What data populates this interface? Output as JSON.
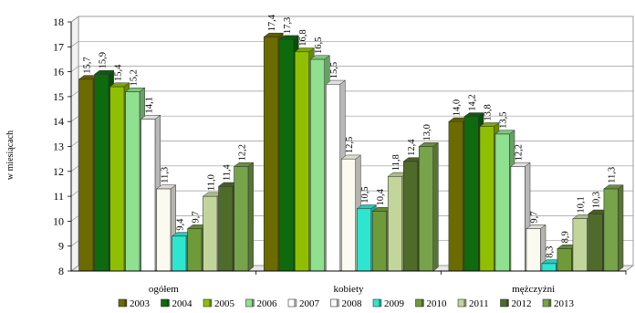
{
  "chart_data": {
    "type": "bar",
    "title": "",
    "xlabel": "",
    "ylabel": "w miesiącach",
    "ylim": [
      8,
      18
    ],
    "yticks": [
      8,
      9,
      10,
      11,
      12,
      13,
      14,
      15,
      16,
      17,
      18
    ],
    "grid": true,
    "legend": "bottom",
    "categories": [
      "ogółem",
      "kobiety",
      "mężczyźni"
    ],
    "series": [
      {
        "name": "2003",
        "color": "#6b6b00",
        "values": [
          15.7,
          17.4,
          14.0
        ],
        "labels": [
          "15,7",
          "17,4",
          "14,0"
        ]
      },
      {
        "name": "2004",
        "color": "#0d6b0d",
        "values": [
          15.9,
          17.3,
          14.2
        ],
        "labels": [
          "15,9",
          "17,3",
          "14,2"
        ]
      },
      {
        "name": "2005",
        "color": "#8fbf00",
        "values": [
          15.4,
          16.8,
          13.8
        ],
        "labels": [
          "15,4",
          "16,8",
          "13,8"
        ]
      },
      {
        "name": "2006",
        "color": "#8fe08f",
        "values": [
          15.2,
          16.5,
          13.5
        ],
        "labels": [
          "15,2",
          "16,5",
          "13,5"
        ]
      },
      {
        "name": "2007",
        "color": "#ffffff",
        "values": [
          14.1,
          15.5,
          12.2
        ],
        "labels": [
          "14,1",
          "15,5",
          "12,2"
        ]
      },
      {
        "name": "2008",
        "color": "#fafaf0",
        "values": [
          11.3,
          12.5,
          9.7
        ],
        "labels": [
          "11,3",
          "12,5",
          "9,7"
        ]
      },
      {
        "name": "2009",
        "color": "#2ee6d0",
        "values": [
          9.4,
          10.5,
          8.3
        ],
        "labels": [
          "9,4",
          "10,5",
          "8,3"
        ]
      },
      {
        "name": "2010",
        "color": "#6f9a3a",
        "values": [
          9.7,
          10.4,
          8.9
        ],
        "labels": [
          "9,7",
          "10,4",
          "8,9"
        ]
      },
      {
        "name": "2011",
        "color": "#c2d69b",
        "values": [
          11.0,
          11.8,
          10.1
        ],
        "labels": [
          "11,0",
          "11,8",
          "10,1"
        ]
      },
      {
        "name": "2012",
        "color": "#4f6b2a",
        "values": [
          11.4,
          12.4,
          10.3
        ],
        "labels": [
          "11,4",
          "12,4",
          "10,3"
        ]
      },
      {
        "name": "2013",
        "color": "#77a34a",
        "values": [
          12.2,
          13.0,
          11.3
        ],
        "labels": [
          "12,2",
          "13,0",
          "11,3"
        ]
      }
    ]
  }
}
